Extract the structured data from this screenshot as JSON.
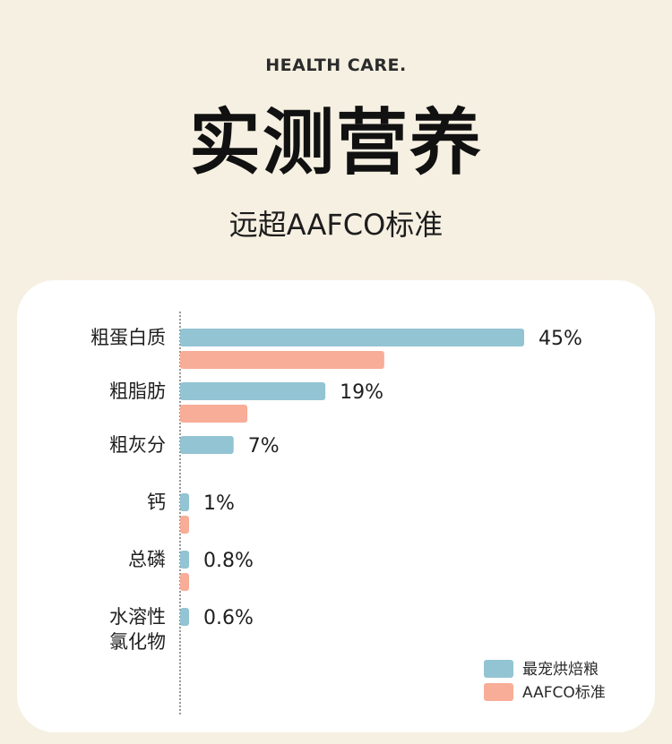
{
  "header": {
    "tag": "HEALTH CARE.",
    "title": "实测营养",
    "subtitle": "远超AAFCO标准"
  },
  "chart_data": {
    "type": "bar",
    "orientation": "horizontal",
    "categories": [
      [
        "粗蛋白质"
      ],
      [
        "粗脂肪"
      ],
      [
        "粗灰分"
      ],
      [
        "钙"
      ],
      [
        "总磷"
      ],
      [
        "水溶性",
        "氯化物"
      ]
    ],
    "series": [
      {
        "name": "最宠烘焙粮",
        "color": "#93c4d3",
        "values": [
          45,
          19,
          7,
          1,
          0.8,
          0.6
        ],
        "labels": [
          "45%",
          "19%",
          "7%",
          "1%",
          "0.8%",
          "0.6%"
        ]
      },
      {
        "name": "AAFCO标准",
        "color": "#f8ad98",
        "values": [
          26.7,
          8.8,
          null,
          0.6,
          0.5,
          null
        ]
      }
    ],
    "legend_position": "bottom-right",
    "grid": false
  }
}
